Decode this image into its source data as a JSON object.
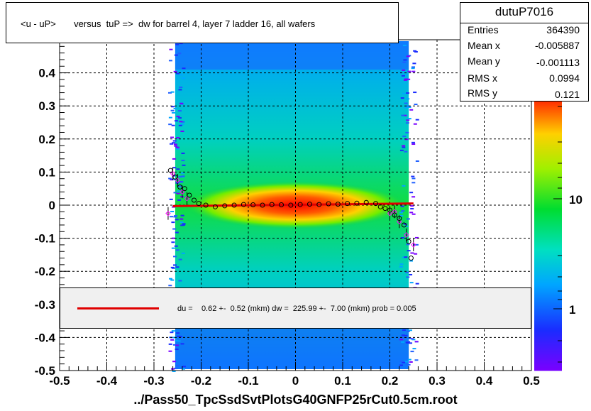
{
  "title": "<u - uP>       versus  tuP =>  dw for barrel 4, layer 7 ladder 16, all wafers",
  "stats": {
    "name": "dutuP7016",
    "rows": [
      {
        "label": "Entries",
        "value": "364390"
      },
      {
        "label": "Mean x",
        "value": "-0.005887"
      },
      {
        "label": "Mean y",
        "value": "-0.001113"
      },
      {
        "label": "RMS x",
        "value": "0.0994"
      },
      {
        "label": "RMS y",
        "value": "0.121"
      }
    ]
  },
  "fit_text": "du =    0.62 +-  0.52 (mkm) dw =  225.99 +-  7.00 (mkm) prob = 0.005",
  "xlabel": "../Pass50_TpcSsdSvtPlotsG40GNFP25rCut0.5cm.root",
  "colors": {
    "fit_line": "#e00000",
    "profile_black": "#000000",
    "profile_magenta": "#ff00ff"
  },
  "chart_data": {
    "type": "heatmap",
    "xlim": [
      -0.5,
      0.5
    ],
    "ylim": [
      -0.5,
      0.5
    ],
    "x_ticks": [
      "-0.5",
      "-0.4",
      "-0.3",
      "-0.2",
      "-0.1",
      "0",
      "0.1",
      "0.2",
      "0.3",
      "0.4",
      "0.5"
    ],
    "y_ticks": [
      "-0.5",
      "-0.4",
      "-0.3",
      "-0.2",
      "-0.1",
      "0",
      "0.1",
      "0.2",
      "0.3",
      "0.4"
    ],
    "z_scale": "log",
    "z_ticks": [
      "1",
      "10"
    ],
    "grid": true,
    "fit_line": {
      "x": [
        -0.26,
        0.25
      ],
      "y": [
        -0.003,
        0.005
      ]
    },
    "profile_points": [
      {
        "x": -0.265,
        "y": 0.105
      },
      {
        "x": -0.255,
        "y": 0.085
      },
      {
        "x": -0.245,
        "y": 0.055
      },
      {
        "x": -0.235,
        "y": 0.05
      },
      {
        "x": -0.225,
        "y": 0.03
      },
      {
        "x": -0.215,
        "y": 0.015
      },
      {
        "x": -0.205,
        "y": 0.005
      },
      {
        "x": -0.19,
        "y": 0.0
      },
      {
        "x": -0.17,
        "y": -0.005
      },
      {
        "x": -0.15,
        "y": -0.002
      },
      {
        "x": -0.13,
        "y": 0.0
      },
      {
        "x": -0.11,
        "y": 0.002
      },
      {
        "x": -0.09,
        "y": 0.001
      },
      {
        "x": -0.07,
        "y": 0.0
      },
      {
        "x": -0.05,
        "y": 0.002
      },
      {
        "x": -0.03,
        "y": 0.001
      },
      {
        "x": -0.01,
        "y": 0.0
      },
      {
        "x": 0.01,
        "y": 0.002
      },
      {
        "x": 0.03,
        "y": 0.003
      },
      {
        "x": 0.05,
        "y": 0.002
      },
      {
        "x": 0.07,
        "y": 0.004
      },
      {
        "x": 0.09,
        "y": 0.003
      },
      {
        "x": 0.11,
        "y": 0.005
      },
      {
        "x": 0.13,
        "y": 0.006
      },
      {
        "x": 0.15,
        "y": 0.008
      },
      {
        "x": 0.17,
        "y": 0.005
      },
      {
        "x": 0.18,
        "y": -0.005
      },
      {
        "x": 0.19,
        "y": -0.01
      },
      {
        "x": 0.2,
        "y": -0.015
      },
      {
        "x": 0.21,
        "y": -0.03
      },
      {
        "x": 0.22,
        "y": -0.04
      },
      {
        "x": 0.23,
        "y": -0.06
      },
      {
        "x": 0.24,
        "y": -0.11
      },
      {
        "x": 0.245,
        "y": -0.16
      }
    ],
    "profile_points_alt": [
      {
        "x": -0.27,
        "y": -0.025
      },
      {
        "x": -0.26,
        "y": 0.095
      },
      {
        "x": -0.25,
        "y": 0.075
      },
      {
        "x": -0.24,
        "y": 0.04
      },
      {
        "x": -0.23,
        "y": 0.02
      },
      {
        "x": 0.2,
        "y": -0.025
      },
      {
        "x": 0.21,
        "y": -0.02
      },
      {
        "x": 0.22,
        "y": -0.05
      },
      {
        "x": 0.235,
        "y": -0.09
      },
      {
        "x": 0.25,
        "y": -0.12
      }
    ]
  }
}
